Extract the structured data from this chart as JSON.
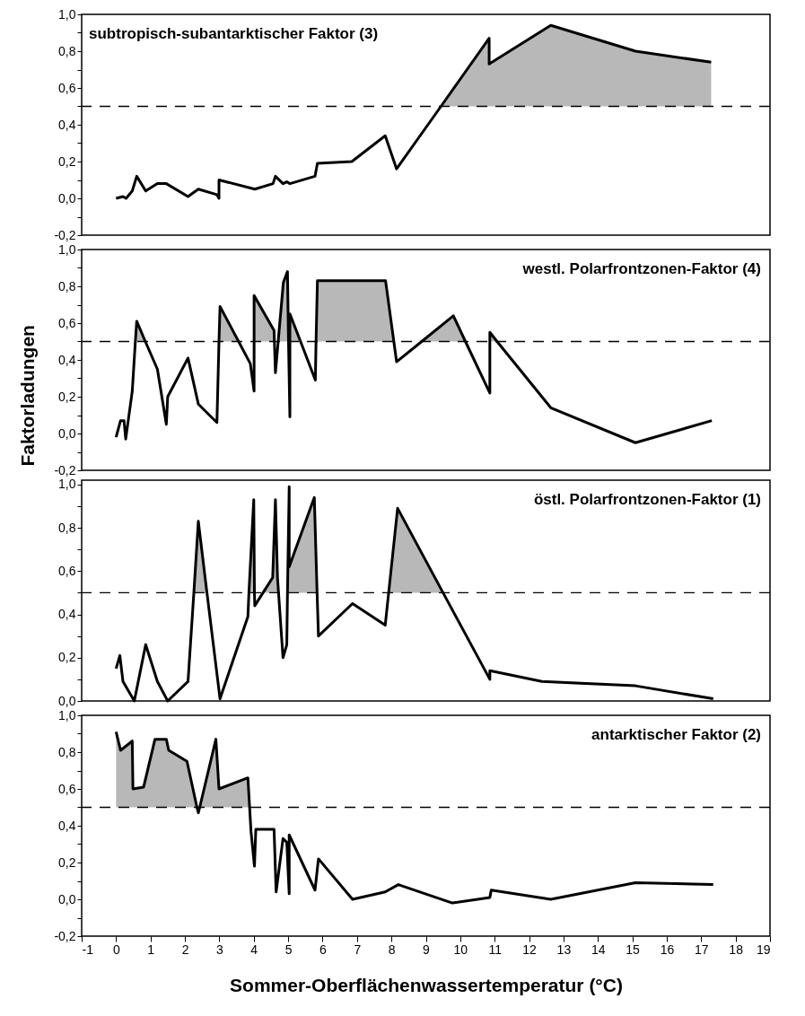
{
  "chart_data": [
    {
      "type": "line",
      "title": "subtropisch-subantarktischer Faktor (3)",
      "xlim": [
        -1,
        19
      ],
      "ylim": [
        -0.2,
        1.0
      ],
      "tick_labels": "y",
      "yticks": [
        {
          "value": -0.2,
          "label": "-0,2"
        },
        {
          "value": -0.1,
          "label": null
        },
        {
          "value": 0,
          "label": "0,0"
        },
        {
          "value": 0.1,
          "label": null
        },
        {
          "value": 0.2,
          "label": "0,2"
        },
        {
          "value": 0.3,
          "label": null
        },
        {
          "value": 0.4,
          "label": "0,4"
        },
        {
          "value": 0.5,
          "label": null
        },
        {
          "value": 0.6,
          "label": "0,6"
        },
        {
          "value": 0.7,
          "label": null
        },
        {
          "value": 0.8,
          "label": "0,8"
        },
        {
          "value": 0.9,
          "label": null
        },
        {
          "value": 1.0,
          "label": "1,0"
        }
      ],
      "ref_lines": [
        {
          "axis": "y",
          "value": 0.5,
          "color": "#000000",
          "line_style": "dashed"
        }
      ],
      "series": [
        {
          "color": "#000000",
          "x": [
            0,
            0.2,
            0.29,
            0.47,
            0.6,
            0.86,
            1.2,
            1.46,
            2.09,
            2.39,
            2.93,
            2.99,
            2.99,
            4.03,
            4.56,
            4.63,
            4.85,
            4.96,
            5.05,
            5.78,
            5.85,
            6.85,
            7.82,
            8.15,
            9.44,
            10.84,
            10.84,
            12.63,
            15.09,
            17.29
          ],
          "values": [
            0,
            0.01,
            0,
            0.04,
            0.12,
            0.04,
            0.08,
            0.08,
            0.01,
            0.05,
            0.02,
            0,
            0.1,
            0.05,
            0.08,
            0.12,
            0.08,
            0.09,
            0.08,
            0.12,
            0.19,
            0.2,
            0.34,
            0.16,
            0.5,
            0.87,
            0.73,
            0.94,
            0.8,
            0.74
          ],
          "lower": [
            0.5,
            0.5,
            0.5,
            0.5,
            0.5,
            0.5,
            0.5,
            0.5,
            0.5,
            0.5,
            0.5,
            0.5,
            0.5,
            0.5,
            0.5,
            0.5,
            0.5,
            0.5,
            0.5,
            0.5,
            0.5,
            0.5,
            0.5,
            0.5,
            0.5,
            0.5,
            0.5,
            0.5,
            0.5,
            0.5
          ],
          "upper": [
            0.5,
            0.5,
            0.5,
            0.5,
            0.5,
            0.5,
            0.5,
            0.5,
            0.5,
            0.5,
            0.5,
            0.5,
            0.5,
            0.5,
            0.5,
            0.5,
            0.5,
            0.5,
            0.5,
            0.5,
            0.5,
            0.5,
            0.5,
            0.5,
            0.5,
            0.87,
            0.73,
            0.94,
            0.8,
            0.74
          ]
        }
      ]
    },
    {
      "type": "line",
      "title": "westl. Polarfrontzonen-Faktor (4)",
      "ylabel": "Faktorladungen",
      "xlim": [
        -1,
        19
      ],
      "ylim": [
        -0.2,
        1.0
      ],
      "tick_labels": "y",
      "yticks": [
        {
          "value": -0.2,
          "label": "-0,2"
        },
        {
          "value": -0.1,
          "label": null
        },
        {
          "value": 0,
          "label": "0,0"
        },
        {
          "value": 0.1,
          "label": null
        },
        {
          "value": 0.2,
          "label": "0,2"
        },
        {
          "value": 0.3,
          "label": null
        },
        {
          "value": 0.4,
          "label": "0,4"
        },
        {
          "value": 0.5,
          "label": null
        },
        {
          "value": 0.6,
          "label": "0,6"
        },
        {
          "value": 0.7,
          "label": null
        },
        {
          "value": 0.8,
          "label": "0,8"
        },
        {
          "value": 0.9,
          "label": null
        },
        {
          "value": 1.0,
          "label": "1,0"
        }
      ],
      "ref_lines": [
        {
          "axis": "y",
          "value": 0.5,
          "color": "#000000",
          "line_style": "dashed"
        }
      ],
      "series": [
        {
          "color": "#000000",
          "x": [
            0,
            0.13,
            0.23,
            0.28,
            0.47,
            0.56,
            0.6,
            0.85,
            1.2,
            1.46,
            1.5,
            2.09,
            2.39,
            2.93,
            2.99,
            3.02,
            3.56,
            3.9,
            4.01,
            4.01,
            4.01,
            4.59,
            4.6,
            4.63,
            4.71,
            4.86,
            4.98,
            5.01,
            5.05,
            5.05,
            5.05,
            5.36,
            5.79,
            5.81,
            5.85,
            7.83,
            8.07,
            8.15,
            8.88,
            9.8,
            10.15,
            10.86,
            10.86,
            10.86,
            11.07,
            12.63,
            15.09,
            17.31
          ],
          "values": [
            -0.02,
            0.07,
            0.07,
            -0.03,
            0.23,
            0.5,
            0.61,
            0.5,
            0.35,
            0.05,
            0.2,
            0.41,
            0.16,
            0.06,
            0.5,
            0.69,
            0.5,
            0.38,
            0.23,
            0.5,
            0.75,
            0.56,
            0.5,
            0.33,
            0.5,
            0.82,
            0.88,
            0.5,
            0.09,
            0.5,
            0.65,
            0.5,
            0.29,
            0.5,
            0.83,
            0.83,
            0.5,
            0.39,
            0.5,
            0.64,
            0.5,
            0.22,
            0.5,
            0.55,
            0.5,
            0.14,
            -0.05,
            0.07
          ],
          "lower": [
            0.5,
            0.5,
            0.5,
            0.5,
            0.5,
            0.5,
            0.5,
            0.5,
            0.5,
            0.5,
            0.5,
            0.5,
            0.5,
            0.5,
            0.5,
            0.5,
            0.5,
            0.5,
            0.5,
            0.5,
            0.5,
            0.5,
            0.5,
            0.5,
            0.5,
            0.5,
            0.5,
            0.5,
            0.5,
            0.5,
            0.5,
            0.5,
            0.5,
            0.5,
            0.5,
            0.5,
            0.5,
            0.5,
            0.5,
            0.5,
            0.5,
            0.5,
            0.5,
            0.5,
            0.5,
            0.5,
            0.5,
            0.5
          ],
          "upper": [
            0.5,
            0.5,
            0.5,
            0.5,
            0.5,
            0.5,
            0.61,
            0.5,
            0.5,
            0.5,
            0.5,
            0.5,
            0.5,
            0.5,
            0.5,
            0.69,
            0.5,
            0.5,
            0.5,
            0.5,
            0.75,
            0.56,
            0.5,
            0.5,
            0.5,
            0.82,
            0.88,
            0.5,
            0.5,
            0.5,
            0.65,
            0.5,
            0.5,
            0.5,
            0.83,
            0.83,
            0.5,
            0.5,
            0.5,
            0.64,
            0.5,
            0.5,
            0.5,
            0.55,
            0.5,
            0.5,
            0.5,
            0.5
          ]
        }
      ]
    },
    {
      "type": "line",
      "title": "östl. Polarfrontzonen-Faktor (1)",
      "xlim": [
        -1,
        19
      ],
      "ylim": [
        0,
        1.02
      ],
      "tick_labels": "y",
      "yticks": [
        {
          "value": 0,
          "label": "0,0"
        },
        {
          "value": 0.1,
          "label": null
        },
        {
          "value": 0.2,
          "label": "0,2"
        },
        {
          "value": 0.3,
          "label": null
        },
        {
          "value": 0.4,
          "label": "0,4"
        },
        {
          "value": 0.5,
          "label": null
        },
        {
          "value": 0.6,
          "label": "0,6"
        },
        {
          "value": 0.7,
          "label": null
        },
        {
          "value": 0.8,
          "label": "0,8"
        },
        {
          "value": 0.9,
          "label": null
        },
        {
          "value": 1.0,
          "label": "1,0"
        }
      ],
      "ref_lines": [
        {
          "axis": "y",
          "value": 0.5,
          "color": "#000000",
          "line_style": "dashed"
        }
      ],
      "series": [
        {
          "color": "#000000",
          "x": [
            0,
            0.11,
            0.2,
            0.53,
            0.86,
            1.2,
            1.5,
            2.09,
            2.26,
            2.39,
            2.64,
            3.02,
            3.83,
            3.86,
            4,
            4.02,
            4.03,
            4.27,
            4.55,
            4.63,
            4.69,
            4.72,
            4.85,
            4.96,
            4.98,
            5.03,
            5.03,
            5.76,
            5.84,
            5.88,
            6.87,
            7.82,
            7.92,
            8.18,
            9.5,
            10.86,
            10.86,
            12.37,
            15.09,
            17.35
          ],
          "values": [
            0.15,
            0.21,
            0.09,
            0,
            0.26,
            0.09,
            0,
            0.09,
            0.5,
            0.83,
            0.5,
            0.01,
            0.39,
            0.5,
            0.93,
            0.5,
            0.44,
            0.5,
            0.57,
            0.93,
            0.57,
            0.5,
            0.2,
            0.26,
            0.5,
            0.99,
            0.62,
            0.94,
            0.5,
            0.3,
            0.45,
            0.35,
            0.5,
            0.89,
            0.5,
            0.1,
            0.14,
            0.09,
            0.07,
            0.01
          ],
          "lower": [
            0.5,
            0.5,
            0.5,
            0.5,
            0.5,
            0.5,
            0.5,
            0.5,
            0.5,
            0.5,
            0.5,
            0.5,
            0.5,
            0.5,
            0.5,
            0.5,
            0.5,
            0.5,
            0.5,
            0.5,
            0.5,
            0.5,
            0.5,
            0.5,
            0.5,
            0.5,
            0.5,
            0.5,
            0.5,
            0.5,
            0.5,
            0.5,
            0.5,
            0.5,
            0.5,
            0.5,
            0.5,
            0.5,
            0.5,
            0.5
          ],
          "upper": [
            0.5,
            0.5,
            0.5,
            0.5,
            0.5,
            0.5,
            0.5,
            0.5,
            0.5,
            0.83,
            0.5,
            0.5,
            0.5,
            0.5,
            0.93,
            0.5,
            0.5,
            0.5,
            0.57,
            0.93,
            0.57,
            0.5,
            0.5,
            0.5,
            0.5,
            0.99,
            0.62,
            0.94,
            0.5,
            0.5,
            0.5,
            0.5,
            0.5,
            0.89,
            0.5,
            0.5,
            0.5,
            0.5,
            0.5,
            0.5
          ]
        }
      ]
    },
    {
      "type": "line",
      "title": "antarktischer Faktor (2)",
      "xlabel": "Sommer-Oberflächenwassertemperatur (°C)",
      "xlim": [
        -1,
        19
      ],
      "xticks": [
        -1,
        0,
        1,
        2,
        3,
        4,
        5,
        6,
        7,
        8,
        9,
        10,
        11,
        12,
        13,
        14,
        15,
        16,
        17,
        18,
        19
      ],
      "ylim": [
        -0.2,
        1.0
      ],
      "yticks": [
        {
          "value": -0.2,
          "label": "-0,2"
        },
        {
          "value": -0.1,
          "label": null
        },
        {
          "value": 0,
          "label": "0,0"
        },
        {
          "value": 0.1,
          "label": null
        },
        {
          "value": 0.2,
          "label": "0,2"
        },
        {
          "value": 0.3,
          "label": null
        },
        {
          "value": 0.4,
          "label": "0,4"
        },
        {
          "value": 0.5,
          "label": null
        },
        {
          "value": 0.6,
          "label": "0,6"
        },
        {
          "value": 0.7,
          "label": null
        },
        {
          "value": 0.8,
          "label": "0,8"
        },
        {
          "value": 0.9,
          "label": null
        },
        {
          "value": 1.0,
          "label": "1,0"
        }
      ],
      "ref_lines": [
        {
          "axis": "y",
          "value": 0.5,
          "color": "#000000",
          "line_style": "dashed"
        }
      ],
      "series": [
        {
          "color": "#000000",
          "x": [
            0,
            0.13,
            0.47,
            0.49,
            0.8,
            1.13,
            1.46,
            1.53,
            2.06,
            2.35,
            2.39,
            2.43,
            2.9,
            2.99,
            3.83,
            3.88,
            3.92,
            4.02,
            4.06,
            4.59,
            4.65,
            4.85,
            4.96,
            5.03,
            5.03,
            5.78,
            5.88,
            6.87,
            7.82,
            8.2,
            9.77,
            10.86,
            10.9,
            12.63,
            15.09,
            17.35
          ],
          "values": [
            0.91,
            0.81,
            0.86,
            0.6,
            0.61,
            0.87,
            0.87,
            0.81,
            0.75,
            0.5,
            0.47,
            0.5,
            0.87,
            0.6,
            0.66,
            0.5,
            0.37,
            0.18,
            0.38,
            0.38,
            0.04,
            0.33,
            0.31,
            0.03,
            0.35,
            0.05,
            0.22,
            0,
            0.04,
            0.08,
            -0.02,
            0.01,
            0.05,
            0,
            0.09,
            0.08
          ],
          "lower": [
            0.5,
            0.5,
            0.5,
            0.5,
            0.5,
            0.5,
            0.5,
            0.5,
            0.5,
            0.5,
            0.5,
            0.5,
            0.5,
            0.5,
            0.5,
            0.5,
            0.5,
            0.5,
            0.5,
            0.5,
            0.5,
            0.5,
            0.5,
            0.5,
            0.5,
            0.5,
            0.5,
            0.5,
            0.5,
            0.5,
            0.5,
            0.5,
            0.5,
            0.5,
            0.5,
            0.5
          ],
          "upper": [
            0.91,
            0.81,
            0.86,
            0.6,
            0.61,
            0.87,
            0.87,
            0.81,
            0.75,
            0.5,
            0.5,
            0.5,
            0.87,
            0.6,
            0.66,
            0.5,
            0.5,
            0.5,
            0.5,
            0.5,
            0.5,
            0.5,
            0.5,
            0.5,
            0.5,
            0.5,
            0.5,
            0.5,
            0.5,
            0.5,
            0.5,
            0.5,
            0.5,
            0.5,
            0.5,
            0.5
          ]
        }
      ]
    }
  ]
}
